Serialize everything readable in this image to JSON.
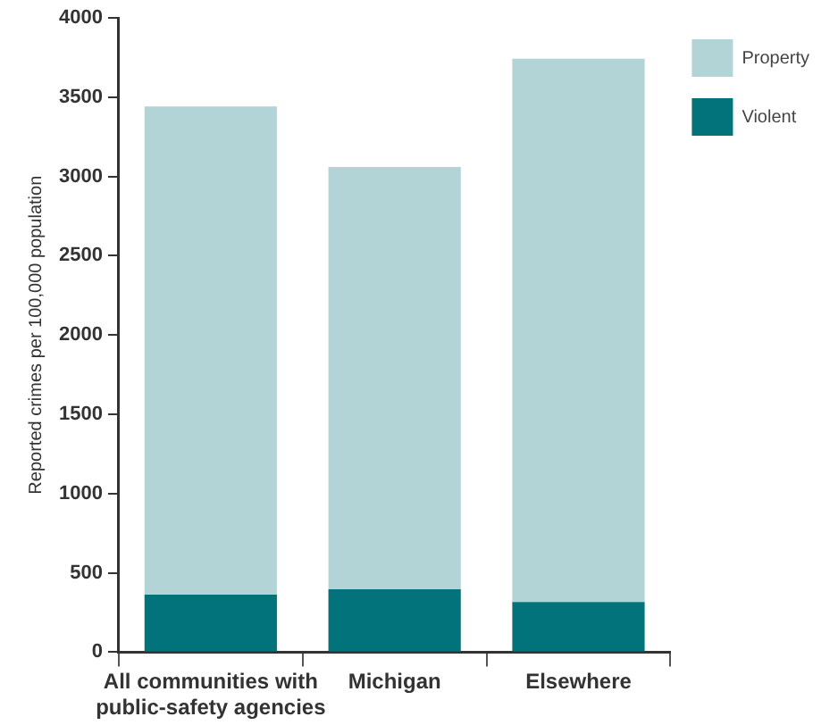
{
  "chart_data": {
    "type": "bar",
    "ylabel": "Reported crimes per 100,000 population",
    "categories": [
      "All communities with public-safety agencies",
      "Michigan",
      "Elsewhere"
    ],
    "stacked": true,
    "series": [
      {
        "name": "Violent",
        "color": "#02737b",
        "values": [
          363,
          397,
          316
        ]
      },
      {
        "name": "Property",
        "color": "#b2d4d6",
        "values": [
          3078,
          2662,
          3426
        ]
      }
    ],
    "ylim": [
      0,
      4000
    ],
    "yticks": [
      0,
      500,
      1000,
      1500,
      2000,
      2500,
      3000,
      3500,
      4000
    ],
    "grid": false,
    "legend": "top right"
  }
}
